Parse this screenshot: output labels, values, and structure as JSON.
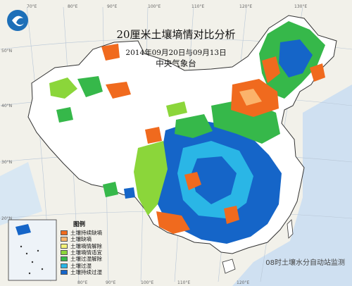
{
  "map": {
    "title": "20厘米土壤墒情对比分析",
    "date_range": "2014年09月20日与09月13日",
    "organization": "中央气象台",
    "footer_note": "08时土壤水分自动站监测"
  },
  "legend": {
    "title": "图例",
    "items": [
      {
        "label": "土壤持续缺墒",
        "color": "#f06a1e"
      },
      {
        "label": "土壤缺墒",
        "color": "#fbb36b"
      },
      {
        "label": "土壤墒情解除",
        "color": "#f4f27a"
      },
      {
        "label": "土壤墒情适宜",
        "color": "#8bd63a"
      },
      {
        "label": "土壤过湿解除",
        "color": "#36b84a"
      },
      {
        "label": "土壤过湿",
        "color": "#2ab6e6"
      },
      {
        "label": "土壤持续过湿",
        "color": "#1565c8"
      }
    ]
  },
  "graticule": {
    "top_labels": [
      "70°E",
      "80°E",
      "90°E",
      "100°E",
      "110°E",
      "120°E",
      "130°E"
    ],
    "bottom_labels": [
      "80°E",
      "90°E",
      "100°E",
      "110°E",
      "120°E"
    ],
    "left_labels": [
      "50°N",
      "40°N",
      "30°N",
      "20°N"
    ]
  },
  "logo_icon": "cma-logo-icon"
}
